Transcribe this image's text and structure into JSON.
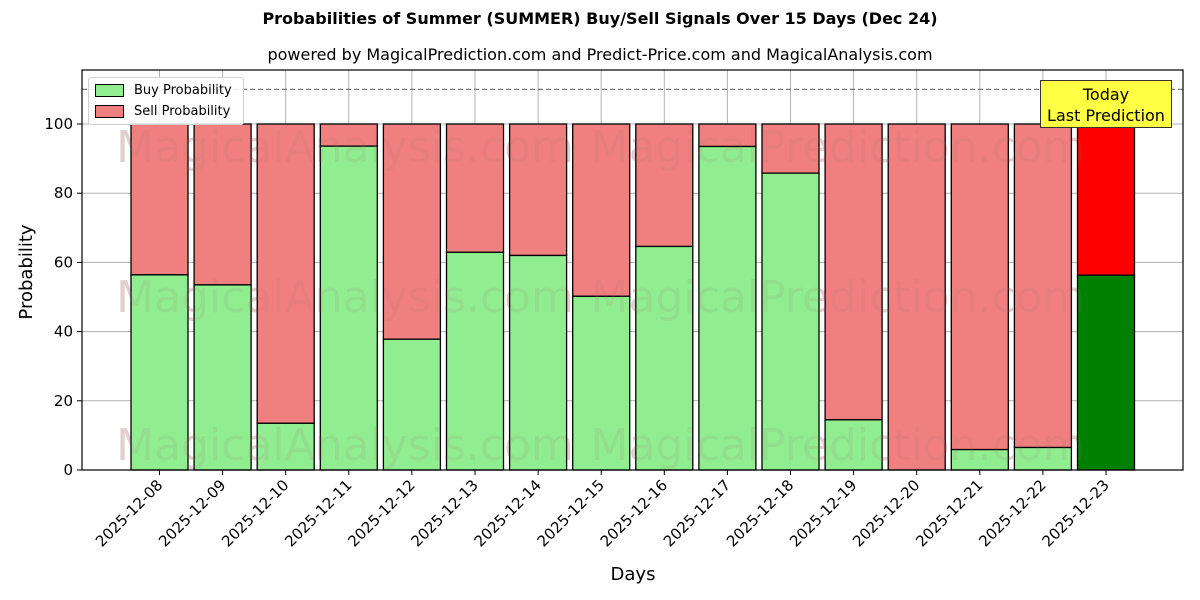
{
  "header": {
    "title": "Probabilities of Summer (SUMMER) Buy/Sell Signals Over 15 Days (Dec 24)",
    "subtitle": "powered by MagicalPrediction.com and Predict-Price.com and MagicalAnalysis.com"
  },
  "legend": {
    "buy_label": "Buy Probability",
    "sell_label": "Sell Probability"
  },
  "annotation": {
    "line1": "Today",
    "line2": "Last Prediction"
  },
  "watermarks": [
    "MagicalAnalysis.com",
    "MagicalPrediction.com"
  ],
  "colors": {
    "buy": "#90ee90",
    "sell": "#f08080",
    "buy_today": "#008000",
    "sell_today": "#ff0000",
    "annotation_bg": "#ffff44"
  },
  "chart_data": {
    "type": "bar",
    "stacked": true,
    "title": "Probabilities of Summer (SUMMER) Buy/Sell Signals Over 15 Days (Dec 24)",
    "subtitle": "powered by MagicalPrediction.com and Predict-Price.com and MagicalAnalysis.com",
    "xlabel": "Days",
    "ylabel": "Probability",
    "ylim": [
      0,
      115
    ],
    "yticks": [
      0,
      20,
      40,
      60,
      80,
      100
    ],
    "grid": true,
    "legend_position": "upper left",
    "reference_line": {
      "y": 110,
      "style": "dashed"
    },
    "categories": [
      "2025-12-08",
      "2025-12-09",
      "2025-12-10",
      "2025-12-11",
      "2025-12-12",
      "2025-12-13",
      "2025-12-14",
      "2025-12-15",
      "2025-12-16",
      "2025-12-17",
      "2025-12-18",
      "2025-12-19",
      "2025-12-20",
      "2025-12-21",
      "2025-12-22",
      "2025-12-23"
    ],
    "series": [
      {
        "name": "Buy Probability",
        "values": [
          56.4,
          53.5,
          13.5,
          93.6,
          37.8,
          62.9,
          62.0,
          50.2,
          64.6,
          93.5,
          85.8,
          14.5,
          0.0,
          5.9,
          6.5,
          56.3
        ]
      },
      {
        "name": "Sell Probability",
        "values": [
          43.6,
          46.5,
          86.5,
          6.4,
          62.2,
          37.1,
          38.0,
          49.8,
          35.4,
          6.5,
          14.2,
          85.5,
          100.0,
          94.1,
          93.5,
          43.7
        ]
      }
    ],
    "annotations": [
      {
        "text": "Today\nLast Prediction",
        "category": "2025-12-23"
      }
    ]
  }
}
